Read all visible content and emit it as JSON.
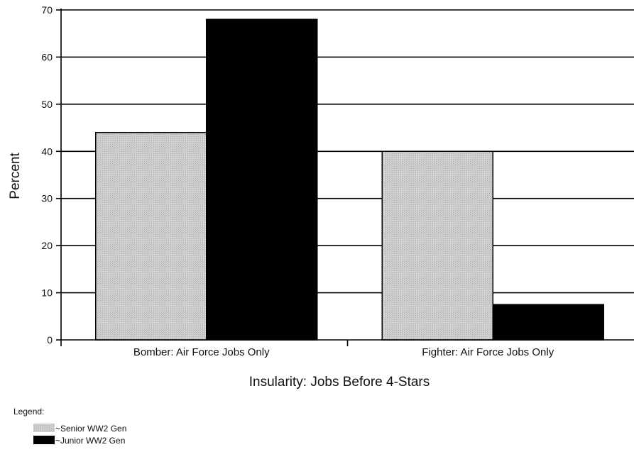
{
  "chart_data": {
    "type": "bar",
    "title": "",
    "xlabel": "Insularity: Jobs Before 4-Stars",
    "ylabel": "Percent",
    "ylim": [
      0,
      70
    ],
    "yticks": [
      0,
      10,
      20,
      30,
      40,
      50,
      60,
      70
    ],
    "grid": true,
    "categories": [
      "Bomber: Air Force Jobs Only",
      "Fighter: Air Force Jobs Only"
    ],
    "series": [
      {
        "name": "~Senior WW2 Gen",
        "values": [
          44,
          40
        ],
        "color": "#c8c8c8"
      },
      {
        "name": "~Junior WW2 Gen",
        "values": [
          68,
          7.5
        ],
        "color": "#000000"
      }
    ],
    "legend_title": "Legend:",
    "legend_position": "bottom-left"
  }
}
